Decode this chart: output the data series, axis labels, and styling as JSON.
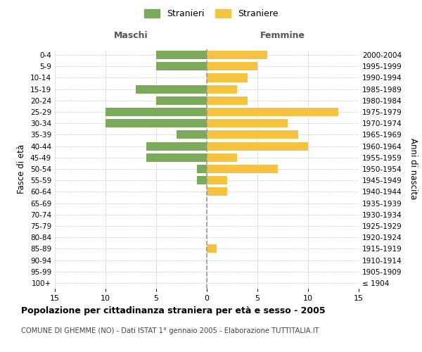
{
  "age_groups": [
    "100+",
    "95-99",
    "90-94",
    "85-89",
    "80-84",
    "75-79",
    "70-74",
    "65-69",
    "60-64",
    "55-59",
    "50-54",
    "45-49",
    "40-44",
    "35-39",
    "30-34",
    "25-29",
    "20-24",
    "15-19",
    "10-14",
    "5-9",
    "0-4"
  ],
  "birth_years": [
    "≤ 1904",
    "1905-1909",
    "1910-1914",
    "1915-1919",
    "1920-1924",
    "1925-1929",
    "1930-1934",
    "1935-1939",
    "1940-1944",
    "1945-1949",
    "1950-1954",
    "1955-1959",
    "1960-1964",
    "1965-1969",
    "1970-1974",
    "1975-1979",
    "1980-1984",
    "1985-1989",
    "1990-1994",
    "1995-1999",
    "2000-2004"
  ],
  "maschi": [
    0,
    0,
    0,
    0,
    0,
    0,
    0,
    0,
    0,
    1,
    1,
    6,
    6,
    3,
    10,
    10,
    5,
    7,
    0,
    5,
    5
  ],
  "femmine": [
    0,
    0,
    0,
    1,
    0,
    0,
    0,
    0,
    2,
    2,
    7,
    3,
    10,
    9,
    8,
    13,
    4,
    3,
    4,
    5,
    6
  ],
  "color_maschi": "#7aaa5a",
  "color_femmine": "#f5c242",
  "background_color": "#ffffff",
  "grid_color": "#cccccc",
  "title": "Popolazione per cittadinanza straniera per età e sesso - 2005",
  "subtitle": "COMUNE DI GHEMME (NO) - Dati ISTAT 1° gennaio 2005 - Elaborazione TUTTITALIA.IT",
  "xlabel_left": "Maschi",
  "xlabel_right": "Femmine",
  "ylabel_left": "Fasce di età",
  "ylabel_right": "Anni di nascita",
  "legend_maschi": "Stranieri",
  "legend_femmine": "Straniere",
  "xlim": 15
}
